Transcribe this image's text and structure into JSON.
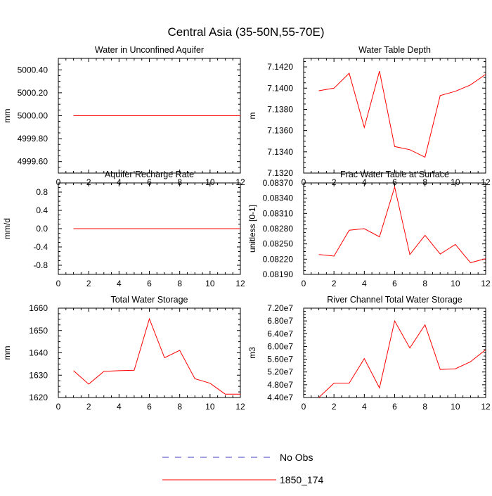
{
  "page_title": "Central Asia (35-50N,55-70E)",
  "legend": [
    {
      "label": "No Obs",
      "color": "#3b3bbf",
      "style": "dashed"
    },
    {
      "label": "1850_174",
      "color": "#ff0000",
      "style": "solid"
    }
  ],
  "chart_data": [
    {
      "type": "line",
      "title": "Water in Unconfined Aquifer",
      "ylabel": "mm",
      "xlim": [
        0,
        12
      ],
      "ylim": [
        4999.5,
        5000.5
      ],
      "xticks": [
        0,
        2,
        4,
        6,
        8,
        10,
        12
      ],
      "yticks": [
        4999.6,
        4999.8,
        5000.0,
        5000.2,
        5000.4
      ],
      "ytick_labels": [
        "4999.60",
        "4999.80",
        "5000.00",
        "5000.20",
        "5000.40"
      ],
      "x": [
        1,
        2,
        3,
        4,
        5,
        6,
        7,
        8,
        9,
        10,
        11,
        12
      ],
      "series": [
        {
          "name": "1850_174",
          "color": "#ff0000",
          "values": [
            5000,
            5000,
            5000,
            5000,
            5000,
            5000,
            5000,
            5000,
            5000,
            5000,
            5000,
            5000
          ]
        }
      ]
    },
    {
      "type": "line",
      "title": "Water Table Depth",
      "ylabel": "m",
      "xlim": [
        0,
        12
      ],
      "ylim": [
        7.132,
        7.1428
      ],
      "xticks": [
        0,
        2,
        4,
        6,
        8,
        10,
        12
      ],
      "yticks": [
        7.132,
        7.134,
        7.136,
        7.138,
        7.14,
        7.142
      ],
      "ytick_labels": [
        "7.1320",
        "7.1340",
        "7.1360",
        "7.1380",
        "7.1400",
        "7.1420"
      ],
      "x": [
        1,
        2,
        3,
        4,
        5,
        6,
        7,
        8,
        9,
        10,
        11,
        12
      ],
      "series": [
        {
          "name": "1850_174",
          "color": "#ff0000",
          "values": [
            7.13975,
            7.14,
            7.1414,
            7.1363,
            7.1416,
            7.1345,
            7.1342,
            7.1335,
            7.1393,
            7.1397,
            7.1403,
            7.1413
          ]
        }
      ]
    },
    {
      "type": "line",
      "title": "Aquifer Recharge Rate",
      "ylabel": "mm/d",
      "xlim": [
        0,
        12
      ],
      "ylim": [
        -1.0,
        1.0
      ],
      "xticks": [
        0,
        2,
        4,
        6,
        8,
        10,
        12
      ],
      "yticks": [
        -0.8,
        -0.4,
        0.0,
        0.4,
        0.8
      ],
      "ytick_labels": [
        "-0.8",
        "-0.4",
        "0.0",
        "0.4",
        "0.8"
      ],
      "x": [
        1,
        2,
        3,
        4,
        5,
        6,
        7,
        8,
        9,
        10,
        11,
        12
      ],
      "series": [
        {
          "name": "1850_174",
          "color": "#ff0000",
          "values": [
            0,
            0,
            0,
            0,
            0,
            0,
            0,
            0,
            0,
            0,
            0,
            0
          ]
        }
      ]
    },
    {
      "type": "line",
      "title": "Frac Water Table at Surface",
      "ylabel": "unitless [0-1]",
      "xlim": [
        0,
        12
      ],
      "ylim": [
        0.0819,
        0.0837
      ],
      "xticks": [
        0,
        2,
        4,
        6,
        8,
        10,
        12
      ],
      "yticks": [
        0.0819,
        0.0822,
        0.0825,
        0.0828,
        0.0831,
        0.0834,
        0.0837
      ],
      "ytick_labels": [
        "0.08190",
        "0.08220",
        "0.08250",
        "0.08280",
        "0.08310",
        "0.08340",
        "0.08370"
      ],
      "x": [
        1,
        2,
        3,
        4,
        5,
        6,
        7,
        8,
        9,
        10,
        11,
        12
      ],
      "series": [
        {
          "name": "1850_174",
          "color": "#ff0000",
          "values": [
            0.08229,
            0.08226,
            0.08277,
            0.0828,
            0.08264,
            0.08362,
            0.08229,
            0.08267,
            0.0823,
            0.08249,
            0.08213,
            0.08221
          ]
        }
      ]
    },
    {
      "type": "line",
      "title": "Total Water Storage",
      "ylabel": "mm",
      "xlim": [
        0,
        12
      ],
      "ylim": [
        1620,
        1660
      ],
      "xticks": [
        0,
        2,
        4,
        6,
        8,
        10,
        12
      ],
      "yticks": [
        1620,
        1630,
        1640,
        1650,
        1660
      ],
      "ytick_labels": [
        "1620",
        "1630",
        "1640",
        "1650",
        "1660"
      ],
      "x": [
        1,
        2,
        3,
        4,
        5,
        6,
        7,
        8,
        9,
        10,
        11,
        12
      ],
      "series": [
        {
          "name": "1850_174",
          "color": "#ff0000",
          "values": [
            1632,
            1626,
            1631.7,
            1632,
            1632.2,
            1655.2,
            1637.8,
            1641.1,
            1628.4,
            1626.4,
            1621.5,
            1621.5
          ]
        }
      ]
    },
    {
      "type": "line",
      "title": "River Channel Total Water Storage",
      "ylabel": "m3",
      "xlim": [
        0,
        12
      ],
      "ylim": [
        44000000,
        72000000
      ],
      "xticks": [
        0,
        2,
        4,
        6,
        8,
        10,
        12
      ],
      "yticks": [
        44000000,
        48000000,
        52000000,
        56000000,
        60000000,
        64000000,
        68000000,
        72000000
      ],
      "ytick_labels": [
        "4.40e7",
        "4.80e7",
        "5.20e7",
        "5.60e7",
        "6.00e7",
        "6.40e7",
        "6.80e7",
        "7.20e7"
      ],
      "x": [
        1,
        2,
        3,
        4,
        5,
        6,
        7,
        8,
        9,
        10,
        11,
        12
      ],
      "series": [
        {
          "name": "1850_174",
          "color": "#ff0000",
          "values": [
            44000000,
            48500000,
            48500000,
            56200000,
            47000000,
            68000000,
            59500000,
            66800000,
            52800000,
            53000000,
            55200000,
            59000000
          ]
        }
      ]
    }
  ]
}
